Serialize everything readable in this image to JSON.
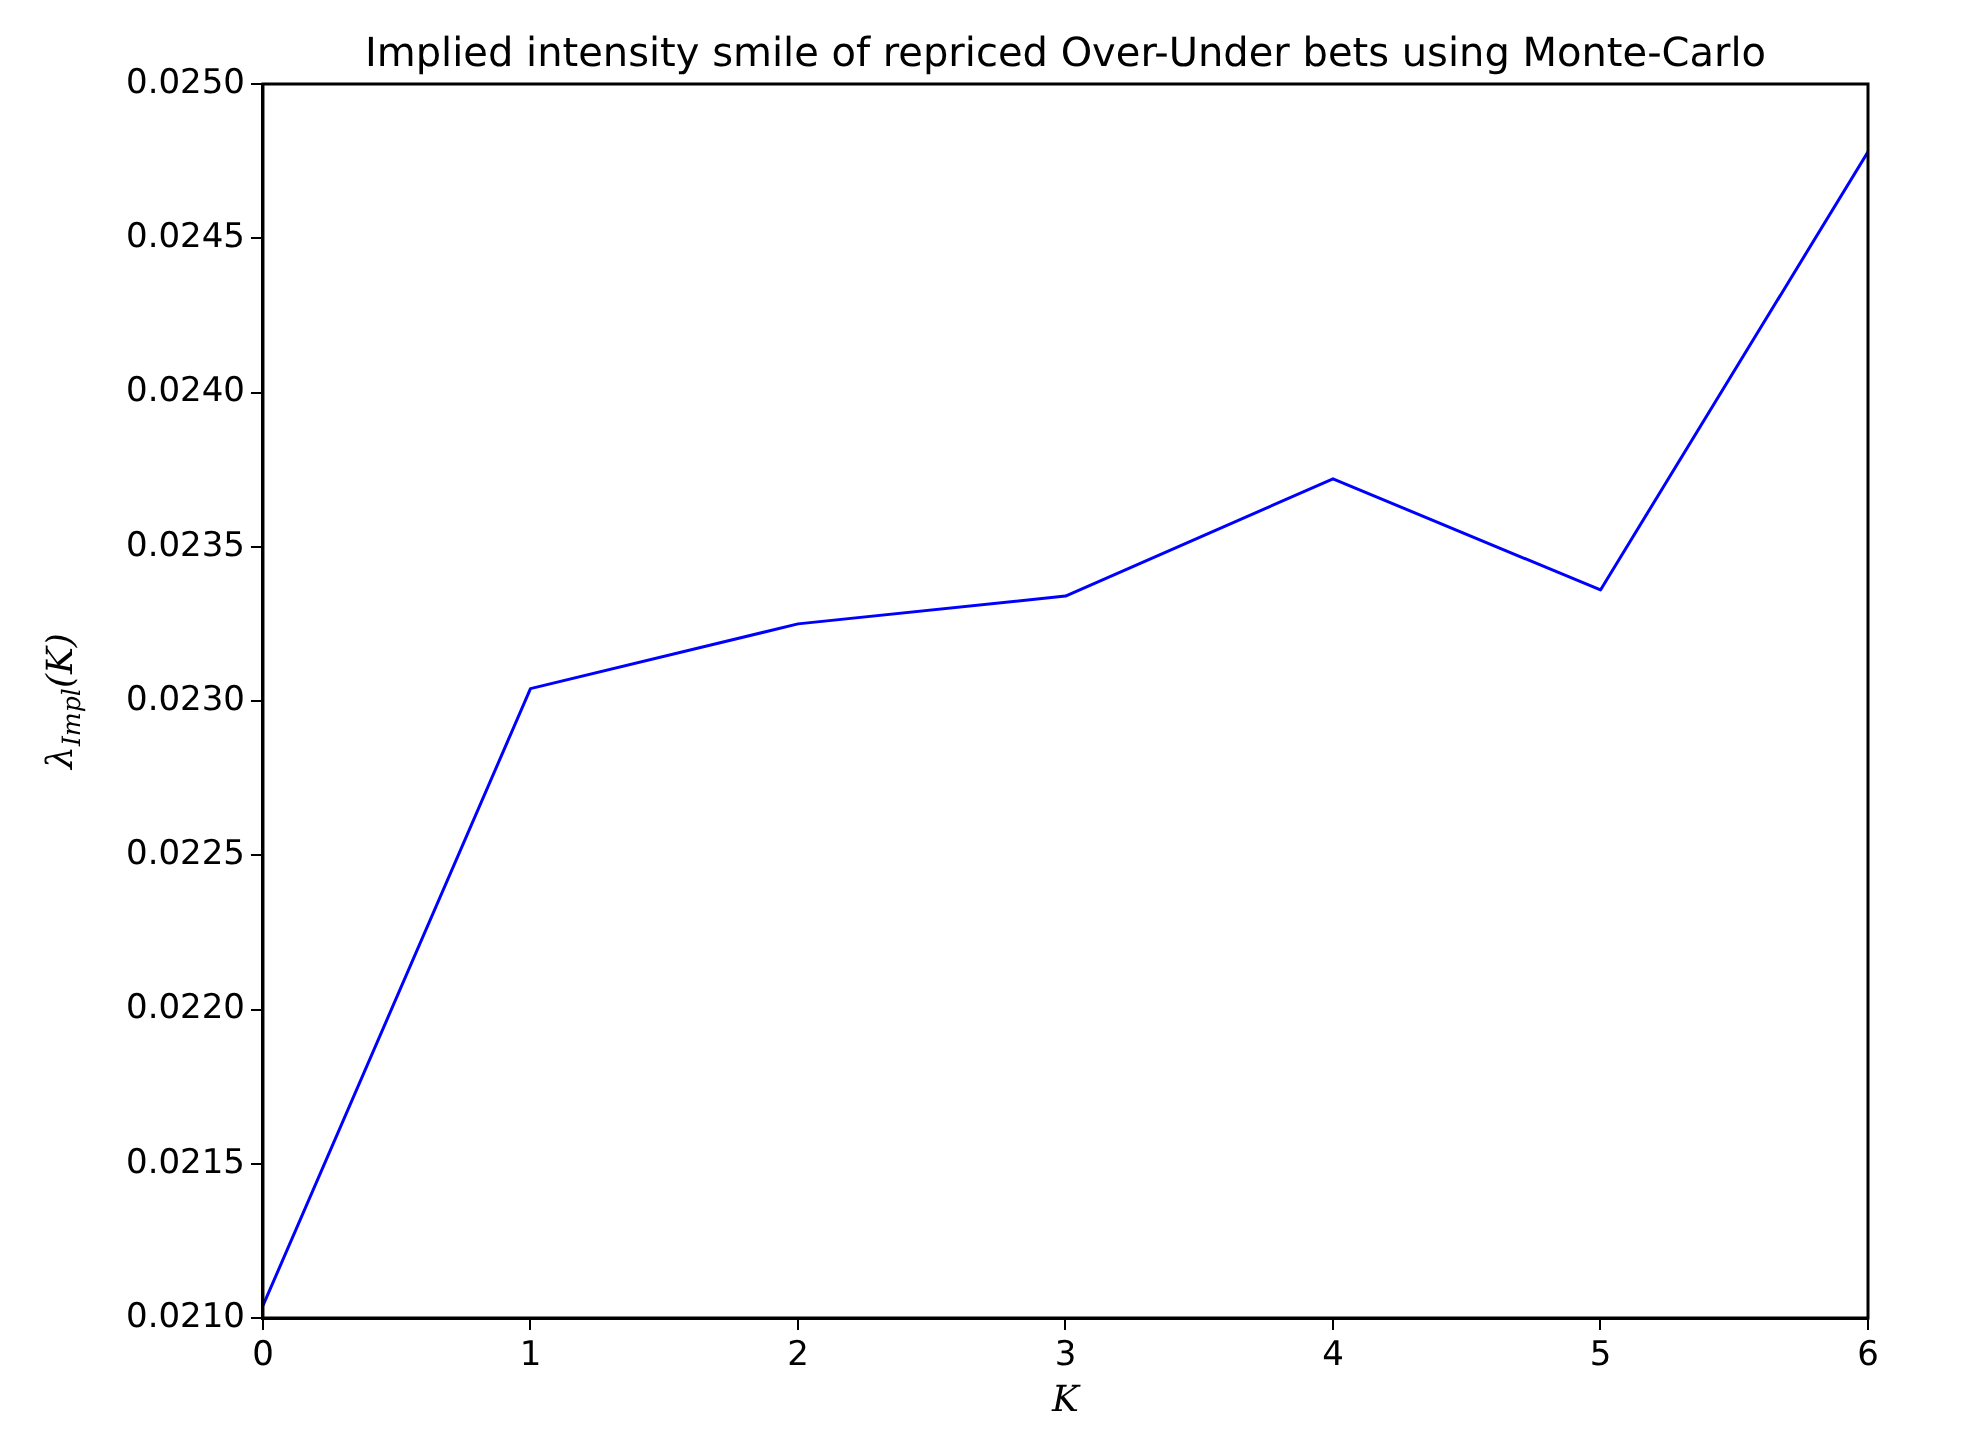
{
  "chart_data": {
    "type": "line",
    "title": "Implied intensity smile of repriced Over-Under bets using Monte-Carlo",
    "xlabel": "K",
    "ylabel": "λ$_{Impl}$(K)",
    "x": [
      0,
      1,
      2,
      3,
      4,
      5,
      6
    ],
    "series": [
      {
        "color": "#0000ff",
        "values": [
          0.02104,
          0.02304,
          0.02325,
          0.02334,
          0.02372,
          0.02336,
          0.02478
        ]
      }
    ],
    "xlim": [
      0,
      6
    ],
    "xticks": [
      0,
      1,
      2,
      3,
      4,
      5,
      6
    ],
    "ylim": [
      0.021,
      0.025
    ],
    "yticks": [
      {
        "value": 0.021,
        "label": "0.0210"
      },
      {
        "value": 0.0215,
        "label": "0.0215"
      },
      {
        "value": 0.022,
        "label": "0.0220"
      },
      {
        "value": 0.0225,
        "label": "0.0225"
      },
      {
        "value": 0.023,
        "label": "0.0230"
      },
      {
        "value": 0.0235,
        "label": "0.0235"
      },
      {
        "value": 0.024,
        "label": "0.0240"
      },
      {
        "value": 0.0245,
        "label": "0.0245"
      },
      {
        "value": 0.025,
        "label": "0.0250"
      }
    ],
    "grid": false,
    "legend": false,
    "marker": "none",
    "line_style": "solid"
  }
}
